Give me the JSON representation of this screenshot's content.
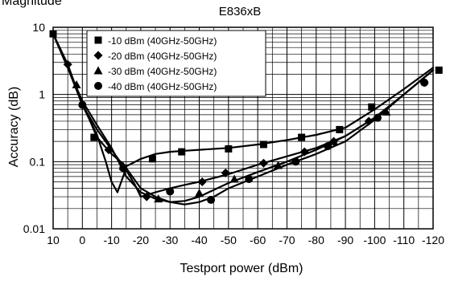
{
  "chart_data": {
    "type": "line",
    "super_title": "Magnitude",
    "title": "E836xB",
    "xlabel": "Testport power (dBm)",
    "ylabel": "Accuracy (dB)",
    "x_ticks": [
      10,
      0,
      -10,
      -20,
      -30,
      -40,
      -50,
      -60,
      -70,
      -80,
      -90,
      -100,
      -110,
      -120
    ],
    "x_tick_labels": [
      "10",
      "0",
      "-10",
      "-20",
      "-30",
      "-40",
      "-50",
      "-60",
      "-70",
      "-80",
      "-90",
      "-100",
      "-110",
      "-120"
    ],
    "xlim": [
      10,
      -120
    ],
    "y_scale": "log",
    "ylim": [
      0.01,
      10
    ],
    "y_ticks": [
      10,
      1,
      0.1,
      0.01
    ],
    "y_tick_labels": [
      "10",
      "1",
      "0.1",
      "0.01"
    ],
    "grid": true,
    "legend_position": "top-left",
    "series": [
      {
        "name": "-10 dBm (40GHz-50GHz)",
        "marker": "square",
        "x": [
          10,
          5,
          0,
          -5,
          -10,
          -15,
          -20,
          -25,
          -30,
          -35,
          -40,
          -50,
          -60,
          -70,
          -80,
          -90,
          -100,
          -110,
          -120
        ],
        "y": [
          8,
          2.5,
          0.75,
          0.23,
          0.13,
          0.085,
          0.11,
          0.13,
          0.14,
          0.145,
          0.15,
          0.16,
          0.18,
          0.21,
          0.25,
          0.32,
          0.6,
          1.2,
          2.5
        ],
        "marker_x": [
          10,
          -4,
          -24,
          -34,
          -50,
          -62,
          -75,
          -88,
          -99,
          -122
        ],
        "marker_y": [
          8,
          0.23,
          0.11,
          0.14,
          0.155,
          0.18,
          0.23,
          0.3,
          0.65,
          2.3
        ]
      },
      {
        "name": "-20 dBm (40GHz-50GHz)",
        "marker": "diamond",
        "x": [
          10,
          5,
          0,
          -5,
          -10,
          -15,
          -18,
          -20,
          -25,
          -30,
          -35,
          -40,
          -50,
          -60,
          -70,
          -80,
          -90,
          -100,
          -110,
          -120
        ],
        "y": [
          8,
          2.8,
          0.7,
          0.3,
          0.15,
          0.075,
          0.045,
          0.03,
          0.035,
          0.04,
          0.045,
          0.05,
          0.065,
          0.09,
          0.12,
          0.16,
          0.24,
          0.45,
          1.0,
          2.3
        ],
        "marker_x": [
          5,
          -9,
          -22,
          -41,
          -49,
          -62,
          -76,
          -86,
          -98,
          -117
        ],
        "marker_y": [
          2.8,
          0.15,
          0.03,
          0.05,
          0.068,
          0.095,
          0.14,
          0.2,
          0.4,
          1.5
        ]
      },
      {
        "name": "-30 dBm (40GHz-50GHz)",
        "marker": "triangle",
        "x": [
          10,
          5,
          0,
          -5,
          -10,
          -15,
          -20,
          -25,
          -30,
          -35,
          -40,
          -45,
          -50,
          -60,
          -70,
          -80,
          -90,
          -100,
          -110,
          -120
        ],
        "y": [
          8,
          2.5,
          0.8,
          0.35,
          0.16,
          0.06,
          0.035,
          0.028,
          0.025,
          0.026,
          0.03,
          0.038,
          0.048,
          0.07,
          0.1,
          0.15,
          0.24,
          0.45,
          1.0,
          2.3
        ],
        "marker_x": [
          2,
          -14,
          -26,
          -40,
          -52,
          -67,
          -86,
          -104
        ],
        "marker_y": [
          1.4,
          0.085,
          0.028,
          0.034,
          0.055,
          0.088,
          0.2,
          0.55
        ]
      },
      {
        "name": "-40 dBm (40GHz-50GHz)",
        "marker": "circle",
        "x": [
          10,
          5,
          0,
          -5,
          -8,
          -10,
          -12,
          -15,
          -20,
          -25,
          -30,
          -35,
          -40,
          -45,
          -50,
          -60,
          -70,
          -80,
          -90,
          -100,
          -110,
          -120
        ],
        "y": [
          8,
          2.5,
          0.7,
          0.25,
          0.1,
          0.05,
          0.035,
          0.08,
          0.04,
          0.03,
          0.025,
          0.023,
          0.025,
          0.03,
          0.04,
          0.06,
          0.09,
          0.13,
          0.2,
          0.42,
          1.0,
          2.3
        ],
        "marker_x": [
          0,
          -14,
          -30,
          -44,
          -57,
          -73,
          -84,
          -101,
          -117
        ],
        "marker_y": [
          0.7,
          0.08,
          0.036,
          0.027,
          0.055,
          0.1,
          0.17,
          0.45,
          1.5
        ]
      }
    ]
  }
}
